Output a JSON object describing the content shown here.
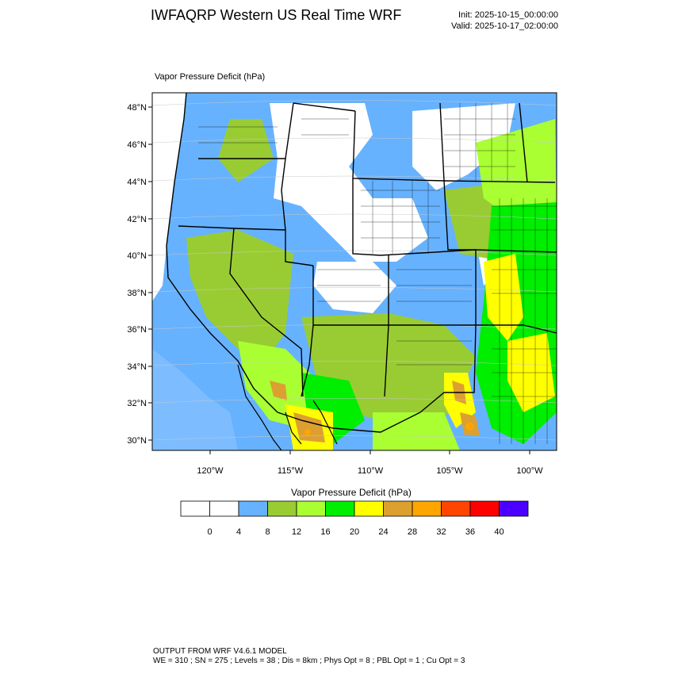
{
  "header": {
    "title": "IWFAQRP Western US Real Time WRF",
    "init": "Init: 2025-10-15_00:00:00",
    "valid": "Valid: 2025-10-17_02:00:00"
  },
  "map": {
    "field_label": "Vapor Pressure Deficit   (hPa)",
    "lat_labels": [
      "48°N",
      "46°N",
      "44°N",
      "42°N",
      "40°N",
      "38°N",
      "36°N",
      "34°N",
      "32°N",
      "30°N"
    ],
    "lon_labels": [
      "120°W",
      "115°W",
      "110°W",
      "105°W",
      "100°W"
    ],
    "colors": {
      "ocean": "#66b2ff",
      "land_low": "#ffffff",
      "border": "#000000"
    }
  },
  "colorbar": {
    "title": "Vapor Pressure Deficit  (hPa)",
    "colors": [
      "#ffffff",
      "#ffffff",
      "#66b2ff",
      "#99cc33",
      "#aaff33",
      "#00ee00",
      "#ffff00",
      "#dca030",
      "#ffa500",
      "#ff4500",
      "#ff0000",
      "#4b00ff"
    ],
    "labels": [
      "0",
      "4",
      "8",
      "12",
      "16",
      "20",
      "24",
      "28",
      "32",
      "36",
      "40"
    ]
  },
  "footer": {
    "line1": "OUTPUT FROM WRF V4.6.1 MODEL",
    "line2": "WE = 310 ; SN = 275 ; Levels = 38 ; Dis = 8km ; Phys Opt = 8 ; PBL Opt = 1 ; Cu Opt = 3"
  }
}
